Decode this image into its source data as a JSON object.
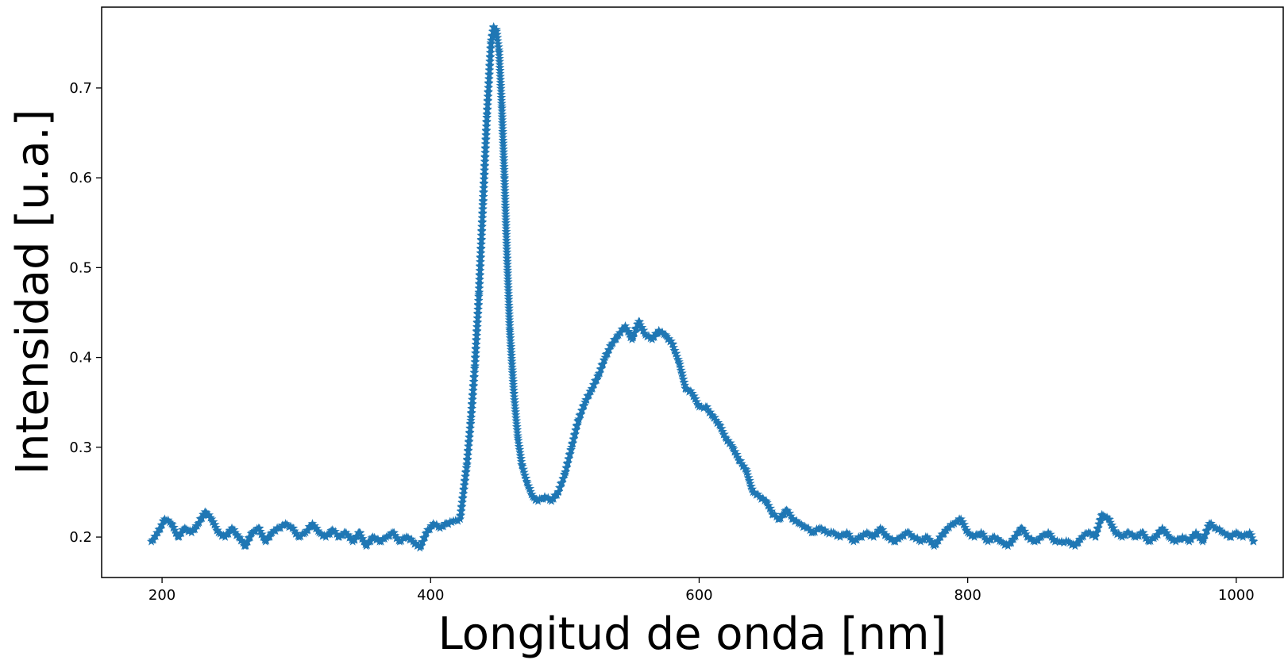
{
  "chart_data": {
    "type": "scatter",
    "marker": "star",
    "color": "#1f77b4",
    "xlabel": "Longitud de onda [nm]",
    "ylabel": "Intensidad [u.a.]",
    "xlim": [
      155,
      1035
    ],
    "ylim": [
      0.155,
      0.79
    ],
    "xticks": [
      200,
      400,
      600,
      800,
      1000
    ],
    "yticks": [
      0.2,
      0.3,
      0.4,
      0.5,
      0.6,
      0.7
    ],
    "grid": false,
    "series": [
      {
        "x": [
          192,
          197,
          202,
          207,
          212,
          217,
          222,
          227,
          232,
          237,
          242,
          247,
          252,
          257,
          262,
          267,
          272,
          277,
          282,
          287,
          292,
          297,
          302,
          307,
          312,
          317,
          322,
          327,
          332,
          337,
          342,
          347,
          352,
          357,
          362,
          367,
          372,
          377,
          382,
          387,
          392,
          397,
          402,
          407,
          412,
          417,
          422,
          427,
          430,
          433,
          436,
          439,
          442,
          445,
          447,
          449,
          451,
          453,
          455,
          457,
          459,
          462,
          465,
          468,
          472,
          476,
          480,
          485,
          490,
          495,
          500,
          505,
          510,
          515,
          520,
          525,
          530,
          535,
          540,
          545,
          550,
          555,
          560,
          565,
          570,
          575,
          580,
          585,
          590,
          595,
          600,
          605,
          610,
          615,
          620,
          625,
          630,
          635,
          640,
          645,
          650,
          655,
          660,
          665,
          670,
          675,
          680,
          685,
          690,
          695,
          700,
          705,
          710,
          715,
          720,
          725,
          730,
          735,
          740,
          745,
          750,
          755,
          760,
          765,
          770,
          775,
          780,
          785,
          790,
          795,
          800,
          805,
          810,
          815,
          820,
          825,
          830,
          835,
          840,
          845,
          850,
          855,
          860,
          865,
          870,
          875,
          880,
          885,
          890,
          895,
          900,
          905,
          910,
          915,
          920,
          925,
          930,
          935,
          940,
          945,
          950,
          955,
          960,
          965,
          970,
          975,
          980,
          985,
          990,
          995,
          1000,
          1005,
          1010,
          1013
        ],
        "y": [
          0.195,
          0.205,
          0.22,
          0.215,
          0.2,
          0.21,
          0.205,
          0.215,
          0.228,
          0.22,
          0.205,
          0.2,
          0.21,
          0.2,
          0.19,
          0.205,
          0.21,
          0.195,
          0.205,
          0.21,
          0.215,
          0.21,
          0.2,
          0.205,
          0.215,
          0.205,
          0.2,
          0.208,
          0.2,
          0.205,
          0.195,
          0.205,
          0.19,
          0.2,
          0.195,
          0.2,
          0.205,
          0.195,
          0.2,
          0.195,
          0.188,
          0.205,
          0.215,
          0.21,
          0.215,
          0.218,
          0.22,
          0.28,
          0.33,
          0.39,
          0.47,
          0.57,
          0.67,
          0.75,
          0.768,
          0.765,
          0.74,
          0.68,
          0.6,
          0.51,
          0.43,
          0.36,
          0.31,
          0.28,
          0.26,
          0.245,
          0.24,
          0.245,
          0.24,
          0.25,
          0.27,
          0.3,
          0.33,
          0.35,
          0.365,
          0.38,
          0.4,
          0.415,
          0.425,
          0.435,
          0.42,
          0.44,
          0.425,
          0.42,
          0.43,
          0.425,
          0.415,
          0.395,
          0.365,
          0.36,
          0.345,
          0.345,
          0.335,
          0.325,
          0.31,
          0.3,
          0.285,
          0.275,
          0.25,
          0.245,
          0.24,
          0.225,
          0.22,
          0.23,
          0.22,
          0.215,
          0.21,
          0.205,
          0.21,
          0.205,
          0.205,
          0.2,
          0.205,
          0.195,
          0.2,
          0.205,
          0.2,
          0.21,
          0.2,
          0.195,
          0.2,
          0.205,
          0.2,
          0.195,
          0.2,
          0.19,
          0.2,
          0.21,
          0.215,
          0.22,
          0.205,
          0.2,
          0.205,
          0.195,
          0.2,
          0.195,
          0.19,
          0.2,
          0.21,
          0.2,
          0.195,
          0.2,
          0.205,
          0.195,
          0.195,
          0.195,
          0.19,
          0.2,
          0.205,
          0.2,
          0.225,
          0.22,
          0.205,
          0.2,
          0.205,
          0.2,
          0.205,
          0.195,
          0.2,
          0.21,
          0.2,
          0.195,
          0.2,
          0.195,
          0.205,
          0.195,
          0.215,
          0.21,
          0.205,
          0.2,
          0.205,
          0.2,
          0.205,
          0.195
        ]
      }
    ]
  }
}
